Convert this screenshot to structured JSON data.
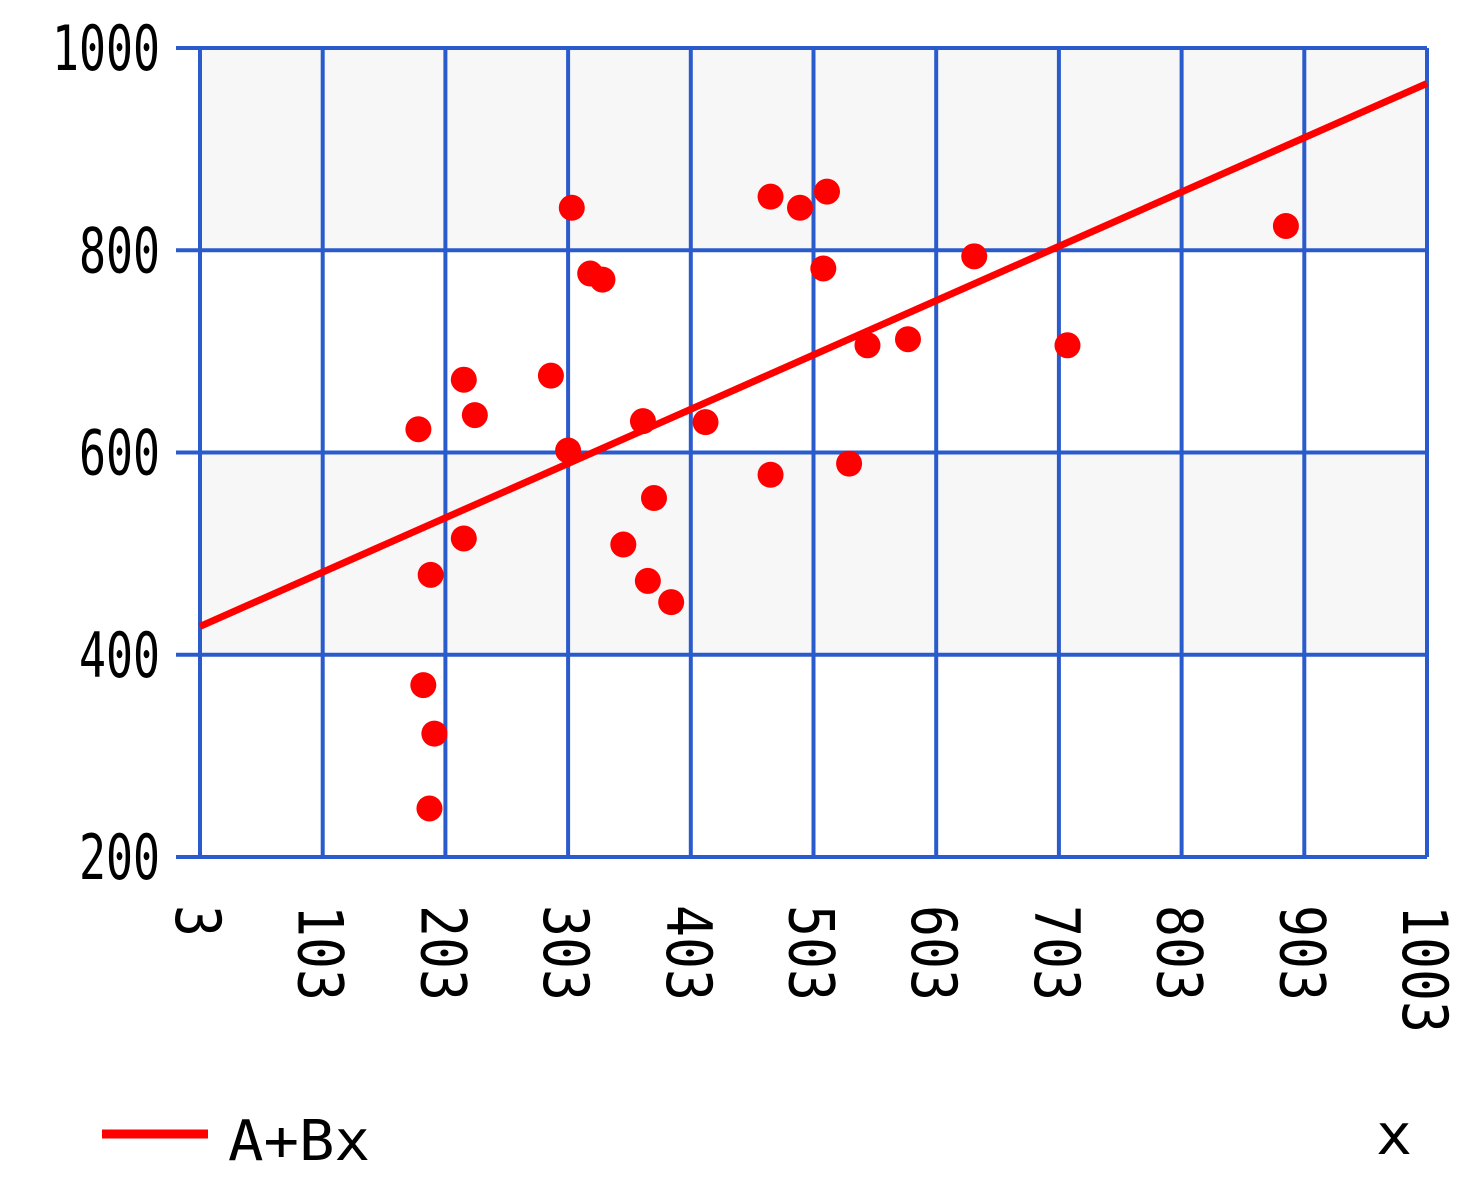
{
  "chart_data": {
    "type": "scatter",
    "xlabel": "x",
    "ylabel": "",
    "xlim": [
      3,
      1003
    ],
    "ylim": [
      200,
      1000
    ],
    "x_ticks": [
      "3",
      "103",
      "203",
      "303",
      "403",
      "503",
      "603",
      "703",
      "803",
      "903",
      "1003"
    ],
    "y_ticks": [
      "200",
      "400",
      "600",
      "800",
      "1000"
    ],
    "y_bands": [
      {
        "from": 200,
        "to": 400,
        "color": "#ffffff"
      },
      {
        "from": 400,
        "to": 600,
        "color": "#f7f7f7"
      },
      {
        "from": 600,
        "to": 800,
        "color": "#ffffff"
      },
      {
        "from": 800,
        "to": 1000,
        "color": "#f7f7f7"
      }
    ],
    "grid": true,
    "grid_color": "#2a5bcc",
    "point_color": "#ff0000",
    "series": [
      {
        "name": "",
        "kind": "scatter",
        "points": [
          [
            181,
            623
          ],
          [
            185,
            370
          ],
          [
            190,
            248
          ],
          [
            191,
            479
          ],
          [
            194,
            322
          ],
          [
            218,
            672
          ],
          [
            218,
            515
          ],
          [
            227,
            637
          ],
          [
            289,
            676
          ],
          [
            303,
            602
          ],
          [
            306,
            842
          ],
          [
            321,
            777
          ],
          [
            331,
            771
          ],
          [
            348,
            509
          ],
          [
            364,
            631
          ],
          [
            368,
            473
          ],
          [
            373,
            555
          ],
          [
            387,
            452
          ],
          [
            415,
            630
          ],
          [
            468,
            578
          ],
          [
            468,
            853
          ],
          [
            492,
            842
          ],
          [
            511,
            782
          ],
          [
            514,
            858
          ],
          [
            532,
            589
          ],
          [
            547,
            706
          ],
          [
            580,
            712
          ],
          [
            634,
            794
          ],
          [
            710,
            706
          ],
          [
            888,
            824
          ]
        ]
      },
      {
        "name": "A+Bx",
        "kind": "line",
        "points": [
          [
            3,
            428
          ],
          [
            1003,
            965
          ]
        ],
        "color": "#ff0000"
      }
    ],
    "legend": [
      {
        "label": "A+Bx",
        "color": "#ff0000"
      }
    ],
    "legend_position": "bottom-left"
  }
}
